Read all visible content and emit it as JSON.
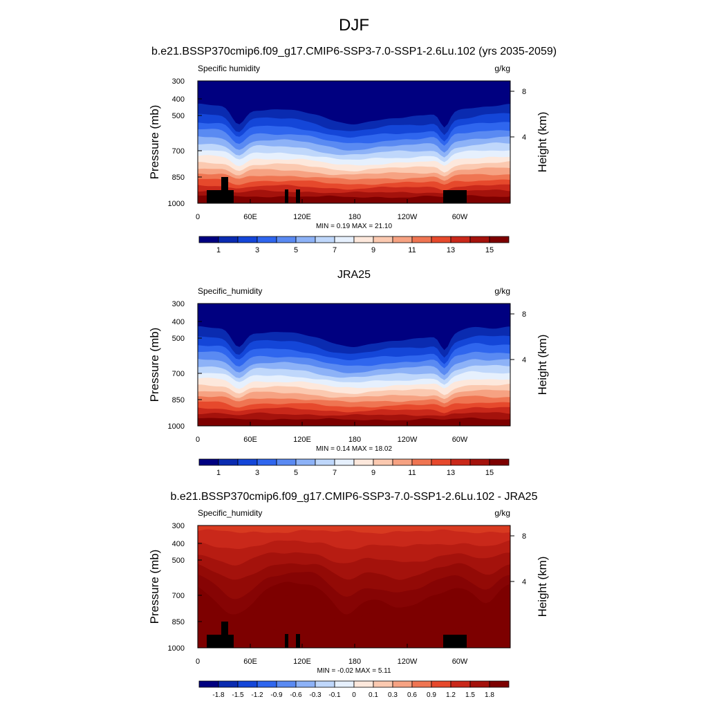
{
  "figure": {
    "title": "DJF",
    "panel_titles": [
      "b.e21.BSSP370cmip6.f09_g17.CMIP6-SSP3-7.0-SSP1-2.6Lu.102 (yrs 2035-2059)",
      "JRA25",
      "b.e21.BSSP370cmip6.f09_g17.CMIP6-SSP3-7.0-SSP1-2.6Lu.102 - JRA25"
    ]
  },
  "chart_data": [
    {
      "type": "heatmap",
      "variable": "Specific humidity",
      "units": "g/kg",
      "xlabel": "",
      "ylabel": "Pressure (mb)",
      "y2label": "Height (km)",
      "x_tick_labels": [
        "0",
        "60E",
        "120E",
        "180",
        "120W",
        "60W"
      ],
      "y_tick_labels": [
        "300",
        "400",
        "500",
        "700",
        "850",
        "1000"
      ],
      "y2_tick_labels": [
        "8",
        "4"
      ],
      "min": 0.19,
      "max": 21.1,
      "minmax_text": "MIN =   0.19  MAX =  21.10",
      "colorbar_labels": [
        "1",
        "3",
        "5",
        "7",
        "9",
        "11",
        "13",
        "15"
      ],
      "colormap": [
        "#000080",
        "#0a2bb0",
        "#1446d8",
        "#2f66ee",
        "#5a8af2",
        "#8db2f7",
        "#bfd7fb",
        "#e6f0fd",
        "#fde8dc",
        "#fbc9b0",
        "#f6a282",
        "#ef7552",
        "#e6492c",
        "#c9281a",
        "#a4120c",
        "#7d0000"
      ],
      "ylim": [
        1000,
        300
      ]
    },
    {
      "type": "heatmap",
      "variable": "Specific_humidity",
      "units": "g/kg",
      "xlabel": "",
      "ylabel": "Pressure (mb)",
      "y2label": "Height (km)",
      "x_tick_labels": [
        "0",
        "60E",
        "120E",
        "180",
        "120W",
        "60W"
      ],
      "y_tick_labels": [
        "300",
        "400",
        "500",
        "700",
        "850",
        "1000"
      ],
      "y2_tick_labels": [
        "8",
        "4"
      ],
      "min": 0.14,
      "max": 18.02,
      "minmax_text": "MIN =   0.14  MAX =  18.02",
      "colorbar_labels": [
        "1",
        "3",
        "5",
        "7",
        "9",
        "11",
        "13",
        "15"
      ],
      "colormap": [
        "#000080",
        "#0a2bb0",
        "#1446d8",
        "#2f66ee",
        "#5a8af2",
        "#8db2f7",
        "#bfd7fb",
        "#e6f0fd",
        "#fde8dc",
        "#fbc9b0",
        "#f6a282",
        "#ef7552",
        "#e6492c",
        "#c9281a",
        "#a4120c",
        "#7d0000"
      ],
      "ylim": [
        1000,
        300
      ]
    },
    {
      "type": "heatmap",
      "variable": "Specific_humidity",
      "units": "g/kg",
      "xlabel": "",
      "ylabel": "Pressure (mb)",
      "y2label": "Height (km)",
      "x_tick_labels": [
        "0",
        "60E",
        "120E",
        "180",
        "120W",
        "60W"
      ],
      "y_tick_labels": [
        "300",
        "400",
        "500",
        "700",
        "850",
        "1000"
      ],
      "y2_tick_labels": [
        "8",
        "4"
      ],
      "min": -0.02,
      "max": 5.11,
      "minmax_text": "MIN =  -0.02  MAX =   5.11",
      "colorbar_labels": [
        "-1.8",
        "-1.5",
        "-1.2",
        "-0.9",
        "-0.6",
        "-0.3",
        "-0.1",
        "0",
        "0.1",
        "0.3",
        "0.6",
        "0.9",
        "1.2",
        "1.5",
        "1.8"
      ],
      "colormap": [
        "#000080",
        "#0a2bb0",
        "#1446d8",
        "#2f66ee",
        "#5a8af2",
        "#8db2f7",
        "#bfd7fb",
        "#e6f0fd",
        "#fde8dc",
        "#fbc9b0",
        "#f6a282",
        "#ef7552",
        "#e6492c",
        "#c9281a",
        "#a4120c",
        "#7d0000"
      ],
      "ylim": [
        1000,
        300
      ]
    }
  ]
}
